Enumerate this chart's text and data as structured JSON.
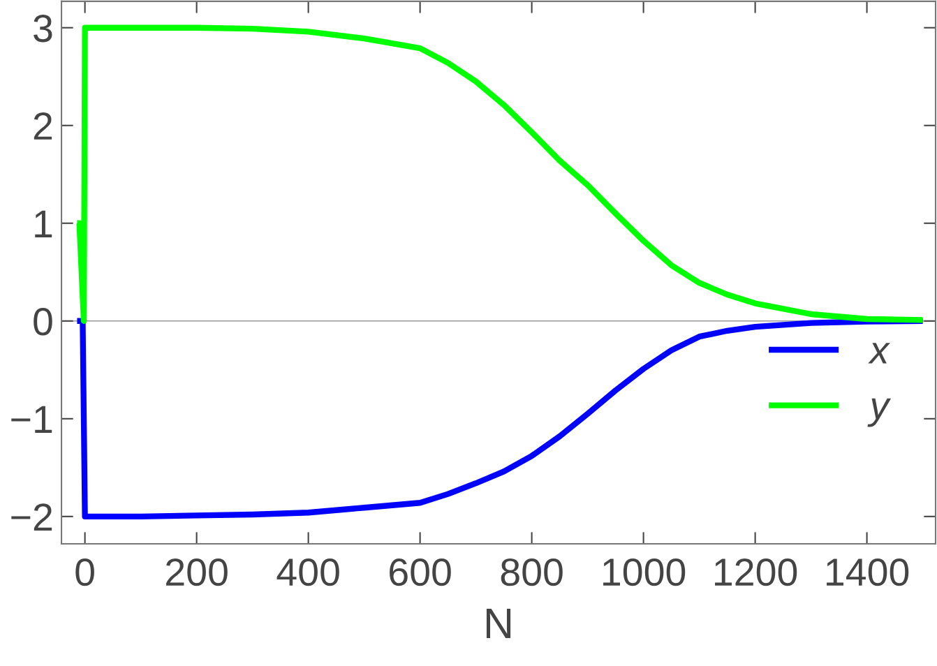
{
  "chart_data": {
    "type": "line",
    "xlabel": "N",
    "xlim": [
      -42,
      1523
    ],
    "ylim": [
      -2.28,
      3.27
    ],
    "xticks": [
      0,
      200,
      400,
      600,
      800,
      1000,
      1200,
      1400
    ],
    "yticks": [
      {
        "value": -2,
        "label": "−2"
      },
      {
        "value": -1,
        "label": "−1"
      },
      0,
      1,
      2,
      3
    ],
    "grid": false,
    "legend": "right",
    "marker": "none",
    "line_style": "solid",
    "ref_lines": [
      {
        "axis": "y",
        "value": 0,
        "color": "#999999"
      }
    ],
    "series": [
      {
        "name": "x",
        "color": "#0000ff",
        "x": [
          -14,
          -4,
          0,
          100,
          200,
          300,
          400,
          500,
          600,
          650,
          700,
          750,
          800,
          850,
          900,
          950,
          1000,
          1050,
          1100,
          1150,
          1200,
          1300,
          1400,
          1500
        ],
        "values": [
          0,
          0,
          -2,
          -2,
          -1.99,
          -1.98,
          -1.96,
          -1.91,
          -1.86,
          -1.77,
          -1.66,
          -1.54,
          -1.38,
          -1.18,
          -0.95,
          -0.71,
          -0.49,
          -0.3,
          -0.16,
          -0.1,
          -0.06,
          -0.02,
          -0.005,
          0
        ]
      },
      {
        "name": "y",
        "color": "#00ff00",
        "x": [
          -14,
          -10,
          -2,
          0,
          100,
          200,
          300,
          400,
          500,
          600,
          650,
          700,
          750,
          800,
          850,
          900,
          950,
          1000,
          1050,
          1100,
          1150,
          1200,
          1300,
          1400,
          1500
        ],
        "values": [
          1,
          1,
          0,
          3,
          3,
          3,
          2.99,
          2.96,
          2.89,
          2.79,
          2.64,
          2.45,
          2.21,
          1.93,
          1.64,
          1.39,
          1.1,
          0.82,
          0.57,
          0.39,
          0.27,
          0.18,
          0.07,
          0.02,
          0.01
        ]
      }
    ]
  }
}
